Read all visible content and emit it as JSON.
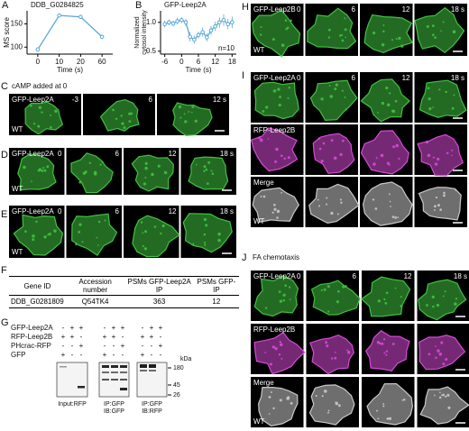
{
  "chart_data": [
    {
      "type": "line",
      "panel": "A",
      "title": "DDB_G0284825",
      "ylabel": "MS score",
      "xlabel": "Time (s)",
      "categories": [
        "0",
        "10",
        "20",
        "60"
      ],
      "values": [
        95,
        168,
        165,
        122
      ],
      "color": "#5aa7d6",
      "ylim": [
        85,
        178
      ],
      "yticks": [
        100,
        150
      ]
    },
    {
      "type": "line",
      "panel": "B",
      "title": "GFP-Leep2A",
      "ylabel": [
        "Normalized",
        "cytosol intensity"
      ],
      "xlabel": "Time (s)",
      "annotation": "n=10",
      "x": [
        -6,
        -4.5,
        -3,
        -1.5,
        0,
        1.5,
        3,
        4.5,
        6,
        7.5,
        9,
        10.5,
        12,
        13.5,
        15,
        16.5,
        18
      ],
      "values": [
        0.97,
        1.0,
        0.98,
        1.02,
        1.04,
        1.0,
        0.75,
        0.7,
        0.78,
        0.83,
        0.74,
        0.86,
        0.93,
        1.0,
        1.04,
        0.97,
        1.0
      ],
      "errors": [
        0.06,
        0.05,
        0.05,
        0.06,
        0.05,
        0.06,
        0.08,
        0.07,
        0.06,
        0.08,
        0.07,
        0.08,
        0.08,
        0.09,
        0.1,
        0.09,
        0.1
      ],
      "color": "#5aa7d6",
      "xlim": [
        -7.5,
        19.5
      ],
      "xticks": [
        -6,
        0,
        6,
        12,
        18
      ],
      "ylim": [
        0.45,
        1.2
      ],
      "yticks": [
        {
          "value": 0.5,
          "label": "0.5"
        },
        {
          "value": 1,
          "label": "1.0"
        }
      ]
    }
  ],
  "panel_c": {
    "letter": "C",
    "caption": "cAMP added at 0",
    "channel": "GFP-Leep2A",
    "times": [
      "-3",
      "6",
      "12 s"
    ],
    "strain": "WT"
  },
  "panel_d": {
    "letter": "D",
    "channel": "GFP-Leep2A",
    "times": [
      "0",
      "6",
      "12",
      "18 s"
    ],
    "strain": "WT"
  },
  "panel_e": {
    "letter": "E",
    "channel": "GFP-Leep2A",
    "times": [
      "0",
      "6",
      "12",
      "18 s"
    ],
    "strain": "WT"
  },
  "panel_f": {
    "letter": "F",
    "table": {
      "header": [
        "Gene ID",
        "Accession number",
        "PSMs GFP-Leep2A IP",
        "PSMs GFP-IP"
      ],
      "rows": [
        [
          "DDB_G0281809",
          "Q54TK4",
          "363",
          "12"
        ]
      ]
    }
  },
  "panel_g": {
    "letter": "G",
    "rows": [
      {
        "label": "GFP-Leep2A",
        "signs": [
          "-",
          "+",
          "+",
          "-",
          "+",
          "+",
          "-",
          "+",
          "+"
        ]
      },
      {
        "label": "RFP-Leep2B",
        "signs": [
          "+",
          "+",
          "-",
          "+",
          "+",
          "-",
          "+",
          "+",
          "-"
        ]
      },
      {
        "label": "PHcrac-RFP",
        "signs": [
          "-",
          "-",
          "+",
          "-",
          "-",
          "+",
          "-",
          "-",
          "+"
        ]
      },
      {
        "label": "GFP",
        "signs": [
          "+",
          "-",
          "-",
          "+",
          "-",
          "-",
          "+",
          "-",
          "-"
        ]
      }
    ],
    "unit": "kDa",
    "markers": [
      180,
      45,
      26
    ],
    "blots": [
      [
        "Input:RFP"
      ],
      [
        "IP:GFP",
        "IB:GFP"
      ],
      [
        "IP:GFP",
        "IB:RFP"
      ]
    ]
  },
  "panel_h": {
    "letter": "H",
    "rows": [
      "GFP-Leep2B"
    ],
    "times": [
      "0",
      "6",
      "12",
      "18 s"
    ],
    "strain": "WT"
  },
  "panel_i": {
    "letter": "I",
    "rows": [
      "GFP-Leep2A",
      "RFP-Leep2B",
      "Merge"
    ],
    "times": [
      "0",
      "6",
      "12",
      "18 s"
    ],
    "strain": "WT"
  },
  "panel_j": {
    "letter": "J",
    "caption": "FA chemotaxis",
    "rows": [
      "GFP-Leep2A",
      "RFP-Leep2B",
      "Merge"
    ],
    "times": [
      "0",
      "6",
      "12",
      "18 s"
    ],
    "strain": "WT"
  }
}
